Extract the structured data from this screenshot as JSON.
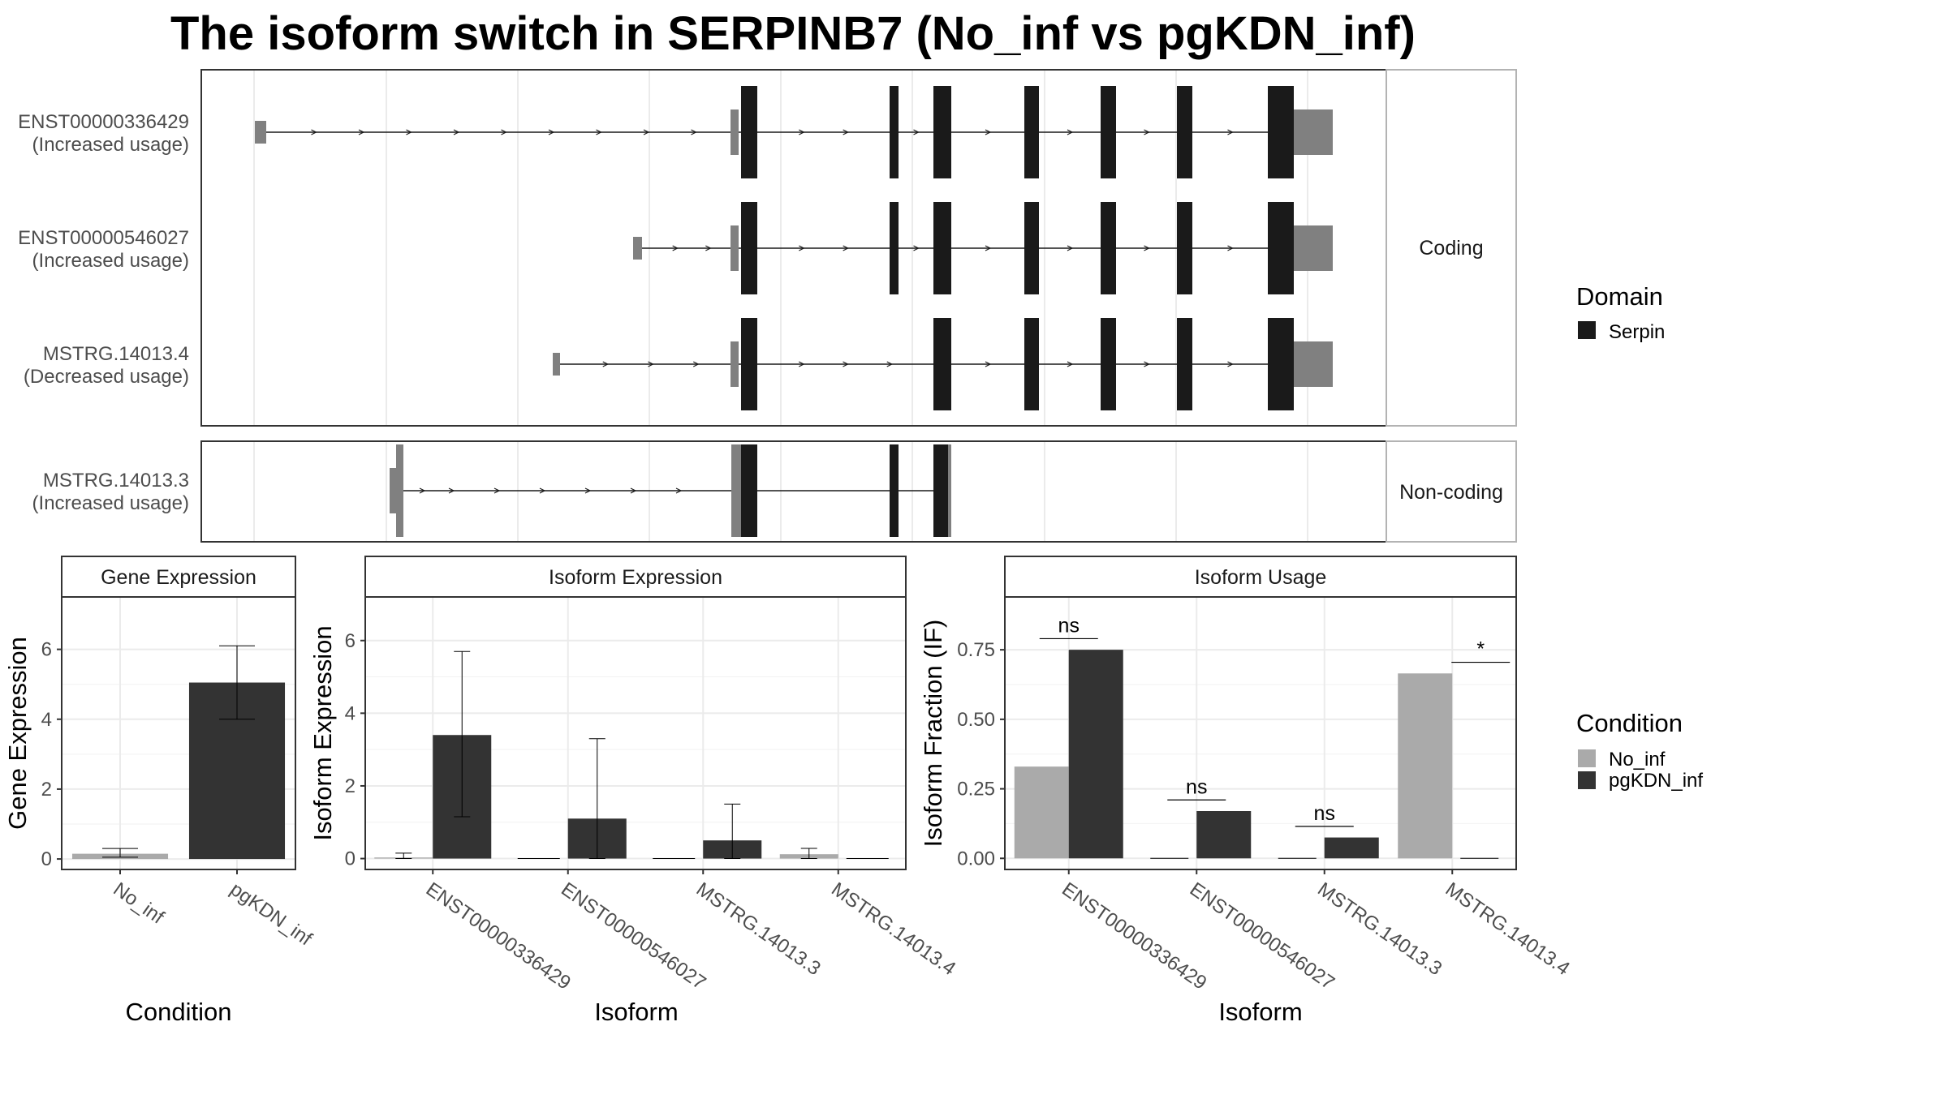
{
  "title": "The isoform switch in SERPINB7 (No_inf vs pgKDN_inf)",
  "colors": {
    "domain": "#1a1a1a",
    "utr": "#808080",
    "no_inf": "#aaaaaa",
    "pgkdn_inf": "#333333",
    "panel_border": "#333333",
    "strip_fill": "#ffffff",
    "grid": "#ebebeb"
  },
  "structure": {
    "facets": [
      "Coding",
      "Non-coding"
    ],
    "coding_transcripts": [
      {
        "id": "ENST00000336429",
        "usage": "(Increased usage)"
      },
      {
        "id": "ENST00000546027",
        "usage": "(Increased usage)"
      },
      {
        "id": "MSTRG.14013.4",
        "usage": "(Decreased usage)"
      }
    ],
    "noncoding_transcripts": [
      {
        "id": "MSTRG.14013.3",
        "usage": "(Increased usage)"
      }
    ]
  },
  "legend_domain": {
    "title": "Domain",
    "items": [
      "Serpin"
    ]
  },
  "legend_condition": {
    "title": "Condition",
    "items": [
      "No_inf",
      "pgKDN_inf"
    ]
  },
  "chart_data": [
    {
      "type": "bar",
      "title": "Gene Expression",
      "xlabel": "Condition",
      "ylabel": "Gene Expression",
      "categories": [
        "No_inf",
        "pgKDN_inf"
      ],
      "values": [
        0.15,
        5.05
      ],
      "error_low": [
        0.05,
        4.0
      ],
      "error_high": [
        0.3,
        6.1
      ],
      "ylim": [
        -0.3,
        7.5
      ],
      "yticks": [
        0,
        2,
        4,
        6
      ]
    },
    {
      "type": "bar",
      "title": "Isoform Expression",
      "xlabel": "Isoform",
      "ylabel": "Isoform Expression",
      "categories": [
        "ENST00000336429",
        "ENST00000546027",
        "MSTRG.14013.3",
        "MSTRG.14013.4"
      ],
      "series": [
        {
          "name": "No_inf",
          "values": [
            0.03,
            0.0,
            0.0,
            0.12
          ],
          "error_low": [
            0.0,
            0.0,
            0.0,
            0.0
          ],
          "error_high": [
            0.15,
            0.0,
            0.0,
            0.28
          ]
        },
        {
          "name": "pgKDN_inf",
          "values": [
            3.4,
            1.1,
            0.5,
            0.0
          ],
          "error_low": [
            1.15,
            0.0,
            0.0,
            0.0
          ],
          "error_high": [
            5.7,
            3.3,
            1.5,
            0.0
          ]
        }
      ],
      "ylim": [
        -0.3,
        7.2
      ],
      "yticks": [
        0,
        2,
        4,
        6
      ]
    },
    {
      "type": "bar",
      "title": "Isoform Usage",
      "xlabel": "Isoform",
      "ylabel": "Isoform Fraction (IF)",
      "categories": [
        "ENST00000336429",
        "ENST00000546027",
        "MSTRG.14013.3",
        "MSTRG.14013.4"
      ],
      "series": [
        {
          "name": "No_inf",
          "values": [
            0.33,
            0.0,
            0.0,
            0.665
          ]
        },
        {
          "name": "pgKDN_inf",
          "values": [
            0.75,
            0.17,
            0.075,
            0.0
          ]
        }
      ],
      "significance": [
        {
          "label": "ns",
          "level": 0.79
        },
        {
          "label": "ns",
          "level": 0.21
        },
        {
          "label": "ns",
          "level": 0.115
        },
        {
          "label": "*",
          "level": 0.705
        }
      ],
      "ylim": [
        -0.04,
        0.94
      ],
      "yticks": [
        "0.00",
        "0.25",
        "0.50",
        "0.75"
      ]
    }
  ]
}
